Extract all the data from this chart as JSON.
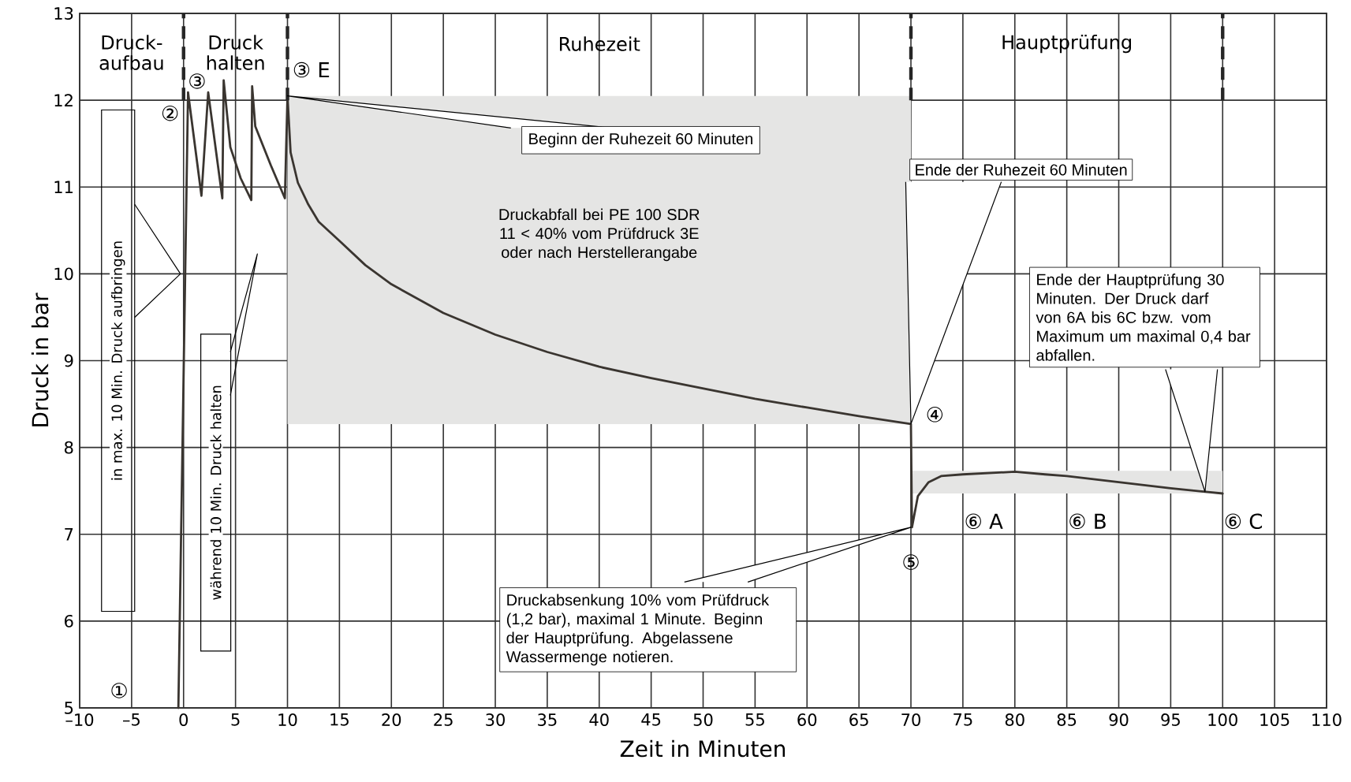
{
  "chart_data": {
    "type": "line",
    "xlabel": "Zeit in Minuten",
    "ylabel": "Druck in bar",
    "xlim": [
      -10,
      110
    ],
    "ylim": [
      5,
      13
    ],
    "xticks": [
      {
        "value": -10,
        "label": "–10"
      },
      {
        "value": -5,
        "label": "–5"
      },
      0,
      5,
      10,
      15,
      20,
      25,
      30,
      35,
      40,
      45,
      50,
      55,
      60,
      65,
      70,
      75,
      80,
      85,
      90,
      95,
      100,
      105,
      110
    ],
    "yticks": [
      5,
      6,
      7,
      8,
      9,
      10,
      11,
      12,
      13
    ],
    "grid": true,
    "marker": "none",
    "line_style": "solid",
    "series": [
      {
        "color": "#3a3530",
        "lower": [
          null,
          null,
          null,
          null,
          null,
          null,
          null,
          null,
          null,
          null,
          null,
          null,
          null,
          8.27,
          8.27,
          8.27,
          8.27,
          8.27,
          8.27,
          8.27,
          8.27,
          8.27,
          8.27,
          8.27,
          8.27,
          8.27,
          8.27,
          8.27,
          8.27,
          8.27,
          8.27,
          7.47,
          7.47,
          7.47,
          7.47,
          7.47,
          7.47,
          7.47,
          7.47,
          7.47,
          7.47,
          7.47
        ],
        "upper": [
          null,
          null,
          null,
          null,
          null,
          null,
          null,
          null,
          null,
          null,
          null,
          null,
          null,
          12.05,
          12.05,
          12.05,
          12.05,
          12.05,
          12.05,
          12.05,
          12.05,
          12.05,
          12.05,
          12.05,
          12.05,
          12.05,
          12.05,
          12.05,
          12.05,
          12.05,
          12.05,
          7.73,
          7.73,
          7.73,
          7.73,
          7.73,
          7.73,
          7.73,
          7.73,
          7.73,
          7.73,
          7.73
        ],
        "x": [
          -0.5,
          0.43,
          1.72,
          2.37,
          3.73,
          3.86,
          4.5,
          5.5,
          6.52,
          6.6,
          6.9,
          8.4,
          9.75,
          10,
          10.3,
          11,
          12,
          13,
          15,
          17.5,
          20,
          25,
          30,
          35,
          40,
          45,
          50,
          55,
          60,
          65,
          70,
          70.1,
          70.67,
          71.7,
          72.9,
          75,
          80,
          82.9,
          85,
          90,
          95,
          100
        ],
        "values": [
          5,
          12.09,
          10.9,
          12.09,
          10.87,
          12.23,
          11.46,
          11.1,
          10.85,
          12.16,
          11.7,
          11.25,
          10.87,
          12.05,
          11.4,
          11.05,
          10.8,
          10.6,
          10.38,
          10.1,
          9.88,
          9.55,
          9.3,
          9.1,
          8.93,
          8.8,
          8.68,
          8.56,
          8.46,
          8.36,
          8.27,
          7.08,
          7.44,
          7.6,
          7.67,
          7.69,
          7.72,
          7.69,
          7.67,
          7.6,
          7.53,
          7.47
        ]
      }
    ],
    "ref_lines": [
      {
        "axis": "x",
        "value": 0,
        "line_style": "dashed"
      },
      {
        "axis": "x",
        "value": 10,
        "line_style": "dashed"
      },
      {
        "axis": "x",
        "value": 70,
        "line_style": "dashed"
      },
      {
        "axis": "x",
        "value": 100,
        "line_style": "dashed"
      }
    ],
    "annotations": [
      "Druck-aufbau",
      "Druck halten",
      "Ruhezeit",
      "Hauptprüfung",
      "①",
      "②",
      "③",
      "③ E",
      "④",
      "⑤",
      "⑥ A",
      "⑥ B",
      "⑥ C",
      "in max. 10 Min. Druck aufbringen",
      "während 10 Min. Druck halten",
      {
        "text": "Beginn der Ruhezeit 60 Minuten",
        "x": 10,
        "y": 12.05
      },
      "Druckabfall bei PE 100 SDR 11 < 40% vom Prüfdruck 3E oder nach Herstellerangabe",
      {
        "text": "Ende der Ruhezeit 60 Minuten",
        "x": 70,
        "y": 8.27
      },
      {
        "text": "Ende der Hauptprüfung 30 Minuten. Der Druck darf von 6A bis 6C bzw. vom Maximum um maximal 0,4 bar abfallen.",
        "x": 98.3,
        "y": 7.49
      },
      {
        "text": "Druckabsenkung 10% vom Prüfdruck (1,2 bar), maximal 1 Minute. Beginn der Hauptprüfung. Abgelassene Wassermenge notieren.",
        "x": 70,
        "y": 7.08
      }
    ]
  }
}
